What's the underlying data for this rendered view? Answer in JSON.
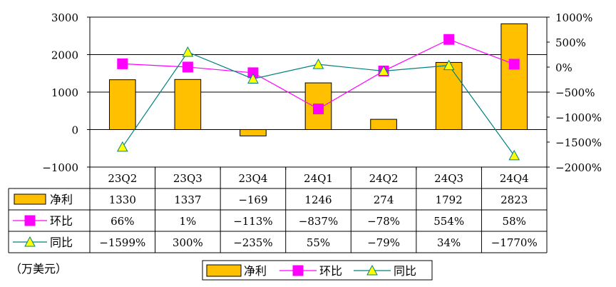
{
  "chart_data": {
    "type": "bar",
    "categories": [
      "23Q2",
      "23Q3",
      "23Q4",
      "24Q1",
      "24Q2",
      "24Q3",
      "24Q4"
    ],
    "unit_note": "（万美元）",
    "ylim": [
      -1000,
      3000
    ],
    "y_ticks": [
      "3000",
      "2000",
      "1000",
      "0",
      "-1000"
    ],
    "y2lim": [
      -2000,
      1000
    ],
    "y2_ticks": [
      "1000%",
      "500%",
      "0%",
      "-500%",
      "-1000%",
      "-1500%",
      "-2000%"
    ],
    "grid": true,
    "legend_position": "bottom",
    "series": [
      {
        "name": "净利",
        "type": "bar",
        "axis": "left",
        "color": "#FFC000",
        "values": [
          1330,
          1337,
          -169,
          1246,
          274,
          1792,
          2823
        ],
        "labels": [
          "1330",
          "1337",
          "-169",
          "1246",
          "274",
          "1792",
          "2823"
        ]
      },
      {
        "name": "环比",
        "type": "line",
        "axis": "right",
        "color": "#FF00FF",
        "marker": "square",
        "values": [
          66,
          1,
          -113,
          -837,
          -78,
          554,
          58
        ],
        "labels": [
          "66%",
          "1%",
          "-113%",
          "-837%",
          "-78%",
          "554%",
          "58%"
        ]
      },
      {
        "name": "同比",
        "type": "line",
        "axis": "right",
        "color": "#008080",
        "marker": "triangle",
        "marker_fill": "#FFFF00",
        "values": [
          -1599,
          300,
          -235,
          55,
          -79,
          34,
          -1770
        ],
        "labels": [
          "-1599%",
          "300%",
          "-235%",
          "55%",
          "-79%",
          "34%",
          "-1770%"
        ]
      }
    ]
  }
}
